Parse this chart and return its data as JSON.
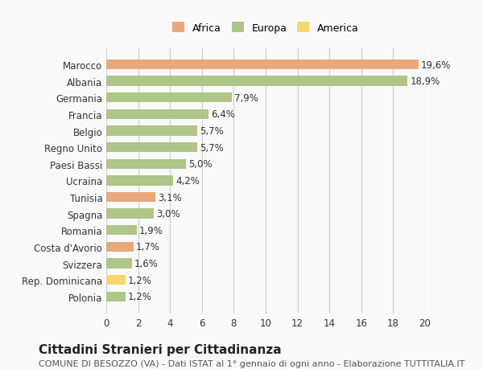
{
  "categories": [
    "Polonia",
    "Rep. Dominicana",
    "Svizzera",
    "Costa d'Avorio",
    "Romania",
    "Spagna",
    "Tunisia",
    "Ucraina",
    "Paesi Bassi",
    "Regno Unito",
    "Belgio",
    "Francia",
    "Germania",
    "Albania",
    "Marocco"
  ],
  "values": [
    1.2,
    1.2,
    1.6,
    1.7,
    1.9,
    3.0,
    3.1,
    4.2,
    5.0,
    5.7,
    5.7,
    6.4,
    7.9,
    18.9,
    19.6
  ],
  "labels": [
    "1,2%",
    "1,2%",
    "1,6%",
    "1,7%",
    "1,9%",
    "3,0%",
    "3,1%",
    "4,2%",
    "5,0%",
    "5,7%",
    "5,7%",
    "6,4%",
    "7,9%",
    "18,9%",
    "19,6%"
  ],
  "colors": [
    "#aec688",
    "#f5d76e",
    "#aec688",
    "#e8a87c",
    "#aec688",
    "#aec688",
    "#e8a87c",
    "#aec688",
    "#aec688",
    "#aec688",
    "#aec688",
    "#aec688",
    "#aec688",
    "#aec688",
    "#e8a87c"
  ],
  "legend_labels": [
    "Africa",
    "Europa",
    "America"
  ],
  "legend_colors": [
    "#e8a87c",
    "#aec688",
    "#f5d76e"
  ],
  "title": "Cittadini Stranieri per Cittadinanza",
  "subtitle": "COMUNE DI BESOZZO (VA) - Dati ISTAT al 1° gennaio di ogni anno - Elaborazione TUTTITALIA.IT",
  "xlim": [
    0,
    20
  ],
  "xticks": [
    0,
    2,
    4,
    6,
    8,
    10,
    12,
    14,
    16,
    18,
    20
  ],
  "background_color": "#f9f9f9",
  "bar_height": 0.6,
  "grid_color": "#cccccc",
  "label_fontsize": 8.5,
  "tick_fontsize": 8.5,
  "title_fontsize": 11,
  "subtitle_fontsize": 8
}
